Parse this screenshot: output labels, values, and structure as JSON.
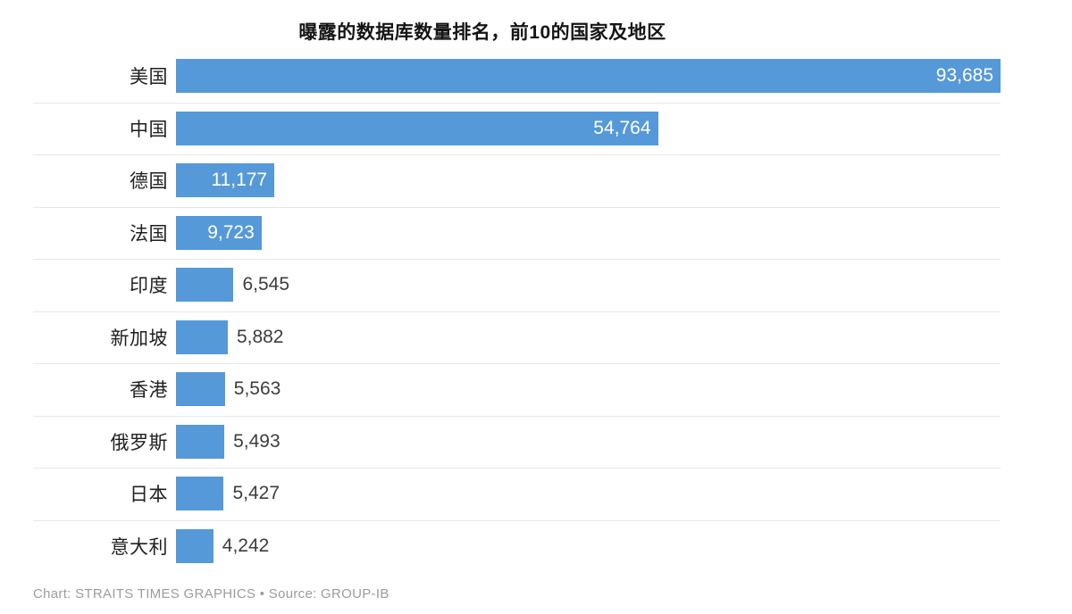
{
  "title": "曝露的数据库数量排名，前10的国家及地区",
  "footer": "Chart: STRAITS TIMES GRAPHICS • Source: GROUP-IB",
  "chart_data": {
    "type": "bar",
    "orientation": "horizontal",
    "title": "曝露的数据库数量排名，前10的国家及地区",
    "categories": [
      "美国",
      "中国",
      "德国",
      "法国",
      "印度",
      "新加坡",
      "香港",
      "俄罗斯",
      "日本",
      "意大利"
    ],
    "values": [
      93685,
      54764,
      11177,
      9723,
      6545,
      5882,
      5563,
      5493,
      5427,
      4242
    ],
    "value_labels": [
      "93,685",
      "54,764",
      "11,177",
      "9,723",
      "6,545",
      "5,882",
      "5,563",
      "5,493",
      "5,427",
      "4,242"
    ],
    "xlim": [
      0,
      93685
    ],
    "xlabel": "",
    "ylabel": "",
    "legend": "none",
    "grid": "row-separator-lines",
    "bar_color": "#5699d8",
    "inside_label_color": "#ffffff",
    "outside_label_color": "#3d3d3d",
    "separator_color": "#e8e8e8"
  }
}
